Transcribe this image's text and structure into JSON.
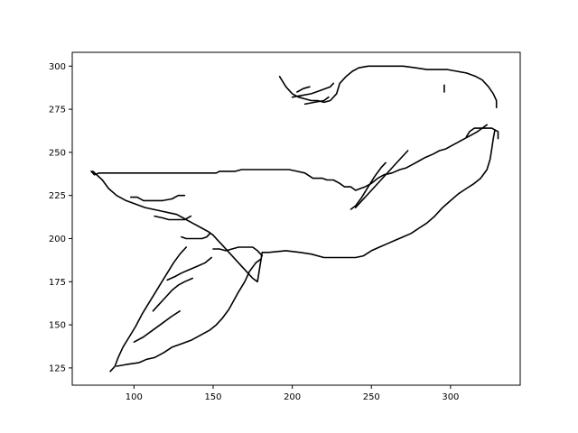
{
  "chart_data": {
    "type": "line",
    "title": "",
    "xlabel": "",
    "ylabel": "",
    "xlim": [
      61,
      344
    ],
    "ylim": [
      115,
      308
    ],
    "xticks": [
      100,
      150,
      200,
      250,
      300
    ],
    "yticks": [
      125,
      150,
      175,
      200,
      225,
      250,
      275,
      300
    ],
    "grid": false,
    "legend": "none",
    "line_color": "#000000",
    "strokes": [
      {
        "points": [
          [
            73,
            239
          ],
          [
            75,
            237
          ],
          [
            78,
            238
          ],
          [
            82,
            238
          ],
          [
            152,
            238
          ],
          [
            154,
            239
          ],
          [
            164,
            239
          ],
          [
            168,
            240
          ],
          [
            198,
            240
          ],
          [
            203,
            239
          ],
          [
            208,
            238
          ],
          [
            213,
            235
          ],
          [
            219,
            235
          ],
          [
            222,
            234
          ],
          [
            226,
            234
          ],
          [
            230,
            232
          ],
          [
            233,
            230
          ],
          [
            237,
            230
          ],
          [
            240,
            228
          ],
          [
            243,
            229
          ],
          [
            246,
            230
          ],
          [
            250,
            232
          ],
          [
            254,
            235
          ],
          [
            258,
            237
          ],
          [
            263,
            238
          ],
          [
            268,
            240
          ],
          [
            272,
            241
          ],
          [
            276,
            243
          ],
          [
            280,
            245
          ],
          [
            284,
            247
          ],
          [
            289,
            249
          ],
          [
            293,
            251
          ],
          [
            297,
            252
          ],
          [
            301,
            254
          ],
          [
            305,
            256
          ],
          [
            309,
            258
          ],
          [
            313,
            260
          ],
          [
            317,
            262
          ],
          [
            320,
            264
          ],
          [
            323,
            266
          ]
        ]
      },
      {
        "points": [
          [
            74,
            239
          ],
          [
            80,
            234
          ],
          [
            84,
            229
          ],
          [
            89,
            225
          ],
          [
            95,
            222
          ],
          [
            101,
            220
          ],
          [
            107,
            218
          ],
          [
            112,
            217
          ],
          [
            117,
            216
          ],
          [
            122,
            215
          ],
          [
            127,
            214
          ],
          [
            131,
            212
          ],
          [
            135,
            210
          ],
          [
            139,
            208
          ],
          [
            143,
            206
          ],
          [
            147,
            204
          ],
          [
            150,
            202
          ],
          [
            153,
            199
          ],
          [
            156,
            196
          ],
          [
            160,
            192
          ],
          [
            164,
            188
          ],
          [
            168,
            184
          ],
          [
            172,
            180
          ],
          [
            175,
            177
          ],
          [
            178,
            175
          ],
          [
            181,
            192
          ],
          [
            185,
            192
          ],
          [
            196,
            193
          ],
          [
            205,
            192
          ],
          [
            212,
            191
          ],
          [
            220,
            189
          ],
          [
            228,
            189
          ],
          [
            240,
            189
          ],
          [
            245,
            190
          ],
          [
            250,
            193
          ],
          [
            255,
            195
          ],
          [
            260,
            197
          ],
          [
            265,
            199
          ],
          [
            270,
            201
          ],
          [
            275,
            203
          ],
          [
            280,
            206
          ],
          [
            285,
            209
          ],
          [
            290,
            213
          ],
          [
            295,
            218
          ],
          [
            300,
            222
          ],
          [
            305,
            226
          ],
          [
            310,
            229
          ],
          [
            315,
            232
          ],
          [
            319,
            235
          ],
          [
            323,
            240
          ],
          [
            325,
            246
          ],
          [
            326,
            252
          ],
          [
            327,
            258
          ],
          [
            328,
            263
          ]
        ]
      },
      {
        "points": [
          [
            192,
            294
          ],
          [
            196,
            288
          ],
          [
            200,
            284
          ],
          [
            204,
            282
          ],
          [
            208,
            281
          ],
          [
            212,
            280
          ],
          [
            216,
            280
          ],
          [
            220,
            279
          ],
          [
            224,
            280
          ],
          [
            228,
            284
          ],
          [
            230,
            290
          ],
          [
            234,
            294
          ],
          [
            238,
            297
          ],
          [
            242,
            299
          ],
          [
            248,
            300
          ],
          [
            255,
            300
          ],
          [
            262,
            300
          ],
          [
            270,
            300
          ],
          [
            278,
            299
          ],
          [
            285,
            298
          ],
          [
            292,
            298
          ],
          [
            298,
            298
          ],
          [
            304,
            297
          ],
          [
            310,
            296
          ],
          [
            316,
            294
          ],
          [
            320,
            292
          ],
          [
            324,
            288
          ],
          [
            327,
            284
          ],
          [
            329,
            280
          ],
          [
            329,
            276
          ]
        ]
      },
      {
        "points": [
          [
            89,
            126
          ],
          [
            95,
            127
          ],
          [
            103,
            128
          ],
          [
            108,
            130
          ],
          [
            113,
            131
          ],
          [
            119,
            134
          ],
          [
            124,
            137
          ],
          [
            130,
            139
          ],
          [
            136,
            141
          ],
          [
            142,
            144
          ],
          [
            148,
            147
          ],
          [
            152,
            150
          ],
          [
            156,
            154
          ],
          [
            160,
            159
          ],
          [
            163,
            164
          ],
          [
            166,
            169
          ],
          [
            170,
            175
          ],
          [
            173,
            181
          ],
          [
            177,
            186
          ],
          [
            180,
            188
          ]
        ]
      },
      {
        "points": [
          [
            150,
            194
          ],
          [
            154,
            194
          ],
          [
            158,
            193
          ],
          [
            162,
            194
          ],
          [
            166,
            195
          ],
          [
            170,
            195
          ],
          [
            175,
            195
          ],
          [
            178,
            193
          ],
          [
            181,
            190
          ]
        ]
      },
      {
        "points": [
          [
            85,
            123
          ],
          [
            88,
            126
          ],
          [
            90,
            131
          ],
          [
            93,
            137
          ],
          [
            97,
            143
          ],
          [
            101,
            149
          ],
          [
            105,
            156
          ],
          [
            109,
            162
          ],
          [
            113,
            168
          ],
          [
            117,
            174
          ],
          [
            121,
            180
          ],
          [
            125,
            186
          ],
          [
            129,
            191
          ],
          [
            133,
            195
          ]
        ]
      },
      {
        "points": [
          [
            98,
            224
          ],
          [
            102,
            224
          ],
          [
            106,
            222
          ],
          [
            112,
            222
          ],
          [
            118,
            222
          ],
          [
            124,
            223
          ],
          [
            128,
            225
          ],
          [
            132,
            225
          ]
        ]
      },
      {
        "points": [
          [
            113,
            213
          ],
          [
            118,
            212
          ],
          [
            122,
            211
          ],
          [
            127,
            211
          ],
          [
            132,
            211
          ],
          [
            136,
            213
          ]
        ]
      },
      {
        "points": [
          [
            130,
            201
          ],
          [
            133,
            200
          ],
          [
            138,
            200
          ],
          [
            143,
            200
          ],
          [
            146,
            201
          ],
          [
            148,
            203
          ]
        ]
      },
      {
        "points": [
          [
            121,
            176
          ],
          [
            126,
            178
          ],
          [
            130,
            180
          ],
          [
            135,
            182
          ],
          [
            140,
            184
          ],
          [
            145,
            186
          ],
          [
            149,
            189
          ]
        ]
      },
      {
        "points": [
          [
            112,
            158
          ],
          [
            116,
            162
          ],
          [
            120,
            166
          ],
          [
            124,
            170
          ],
          [
            128,
            173
          ],
          [
            132,
            175
          ],
          [
            137,
            177
          ]
        ]
      },
      {
        "points": [
          [
            100,
            140
          ],
          [
            106,
            143
          ],
          [
            112,
            147
          ],
          [
            118,
            151
          ],
          [
            124,
            155
          ],
          [
            129,
            158
          ]
        ]
      },
      {
        "points": [
          [
            200,
            282
          ],
          [
            206,
            283
          ],
          [
            212,
            284
          ],
          [
            218,
            286
          ],
          [
            224,
            288
          ],
          [
            226,
            290
          ]
        ]
      },
      {
        "points": [
          [
            203,
            285
          ],
          [
            207,
            287
          ],
          [
            211,
            288
          ]
        ]
      },
      {
        "points": [
          [
            208,
            278
          ],
          [
            214,
            279
          ],
          [
            220,
            280
          ],
          [
            223,
            282
          ]
        ]
      },
      {
        "points": [
          [
            237,
            217
          ],
          [
            240,
            219
          ],
          [
            244,
            224
          ],
          [
            248,
            230
          ],
          [
            252,
            236
          ],
          [
            256,
            241
          ],
          [
            259,
            244
          ]
        ]
      },
      {
        "points": [
          [
            240,
            218
          ],
          [
            244,
            222
          ],
          [
            250,
            228
          ],
          [
            256,
            234
          ],
          [
            262,
            240
          ],
          [
            268,
            246
          ],
          [
            273,
            251
          ]
        ]
      },
      {
        "points": [
          [
            296,
            285
          ],
          [
            296,
            289
          ]
        ]
      },
      {
        "points": [
          [
            310,
            259
          ],
          [
            312,
            262
          ],
          [
            315,
            264
          ],
          [
            320,
            264
          ],
          [
            326,
            264
          ],
          [
            330,
            262
          ],
          [
            330,
            258
          ]
        ]
      }
    ]
  }
}
